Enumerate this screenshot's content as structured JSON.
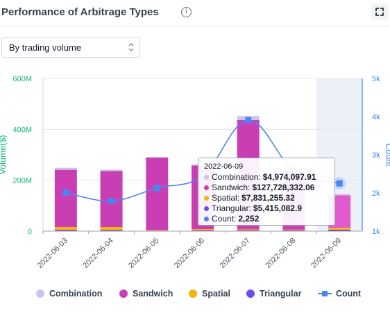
{
  "header": {
    "title": "Performance of Arbitrage Types",
    "info_glyph": "i"
  },
  "select": {
    "value": "By trading volume"
  },
  "chart_data": {
    "type": "bar",
    "categories": [
      "2022-06-03",
      "2022-06-04",
      "2022-06-05",
      "2022-06-06",
      "2022-06-07",
      "2022-06-08",
      "2022-06-09"
    ],
    "stacked": true,
    "left_axis": {
      "label": "Volume($)",
      "ticks": [
        "0",
        "200M",
        "400M",
        "600M"
      ],
      "range": [
        0,
        600
      ],
      "unit": "M",
      "color": "#10b981"
    },
    "right_axis": {
      "label": "Count",
      "ticks": [
        "1k",
        "2k",
        "3k",
        "4k",
        "5k"
      ],
      "range": [
        1000,
        5000
      ],
      "color": "#3b82f6"
    },
    "series": [
      {
        "name": "Triangular",
        "color": "#6d4de8",
        "values": [
          5,
          4,
          2,
          3,
          3,
          3,
          5.4
        ]
      },
      {
        "name": "Spatial",
        "color": "#f5b50a",
        "values": [
          11,
          12,
          3,
          5,
          4,
          3,
          7.8
        ]
      },
      {
        "name": "Sandwich",
        "color": "#c93fb3",
        "values": [
          225,
          220,
          284,
          250,
          430,
          230,
          127.7
        ]
      },
      {
        "name": "Combination",
        "color": "#c9c6ea",
        "values": [
          8,
          6,
          2,
          5,
          15,
          7,
          5.0
        ]
      }
    ],
    "line": {
      "name": "Count",
      "color": "#4a86f0",
      "values": [
        2010,
        1790,
        2130,
        2450,
        3910,
        2590,
        2252
      ]
    },
    "highlight_index": 6
  },
  "tooltip": {
    "date": "2022-06-09",
    "rows": [
      {
        "label": "Combination:",
        "value": "$4,974,097.91",
        "color": "#c9c6ea"
      },
      {
        "label": "Sandwich:",
        "value": "$127,728,332.06",
        "color": "#c93fb3"
      },
      {
        "label": "Spatial:",
        "value": "$7,831,255.32",
        "color": "#f5b50a"
      },
      {
        "label": "Triangular:",
        "value": "$5,415,082.9",
        "color": "#6d4de8"
      },
      {
        "label": "Count:",
        "value": "2,252",
        "color": "#4a86f0"
      }
    ]
  },
  "legend": [
    {
      "label": "Combination",
      "color": "#c9c6ea"
    },
    {
      "label": "Sandwich",
      "color": "#c93fb3"
    },
    {
      "label": "Spatial",
      "color": "#f5b50a"
    },
    {
      "label": "Triangular",
      "color": "#6d4de8"
    },
    {
      "label": "Count",
      "color": "#4a86f0"
    }
  ]
}
